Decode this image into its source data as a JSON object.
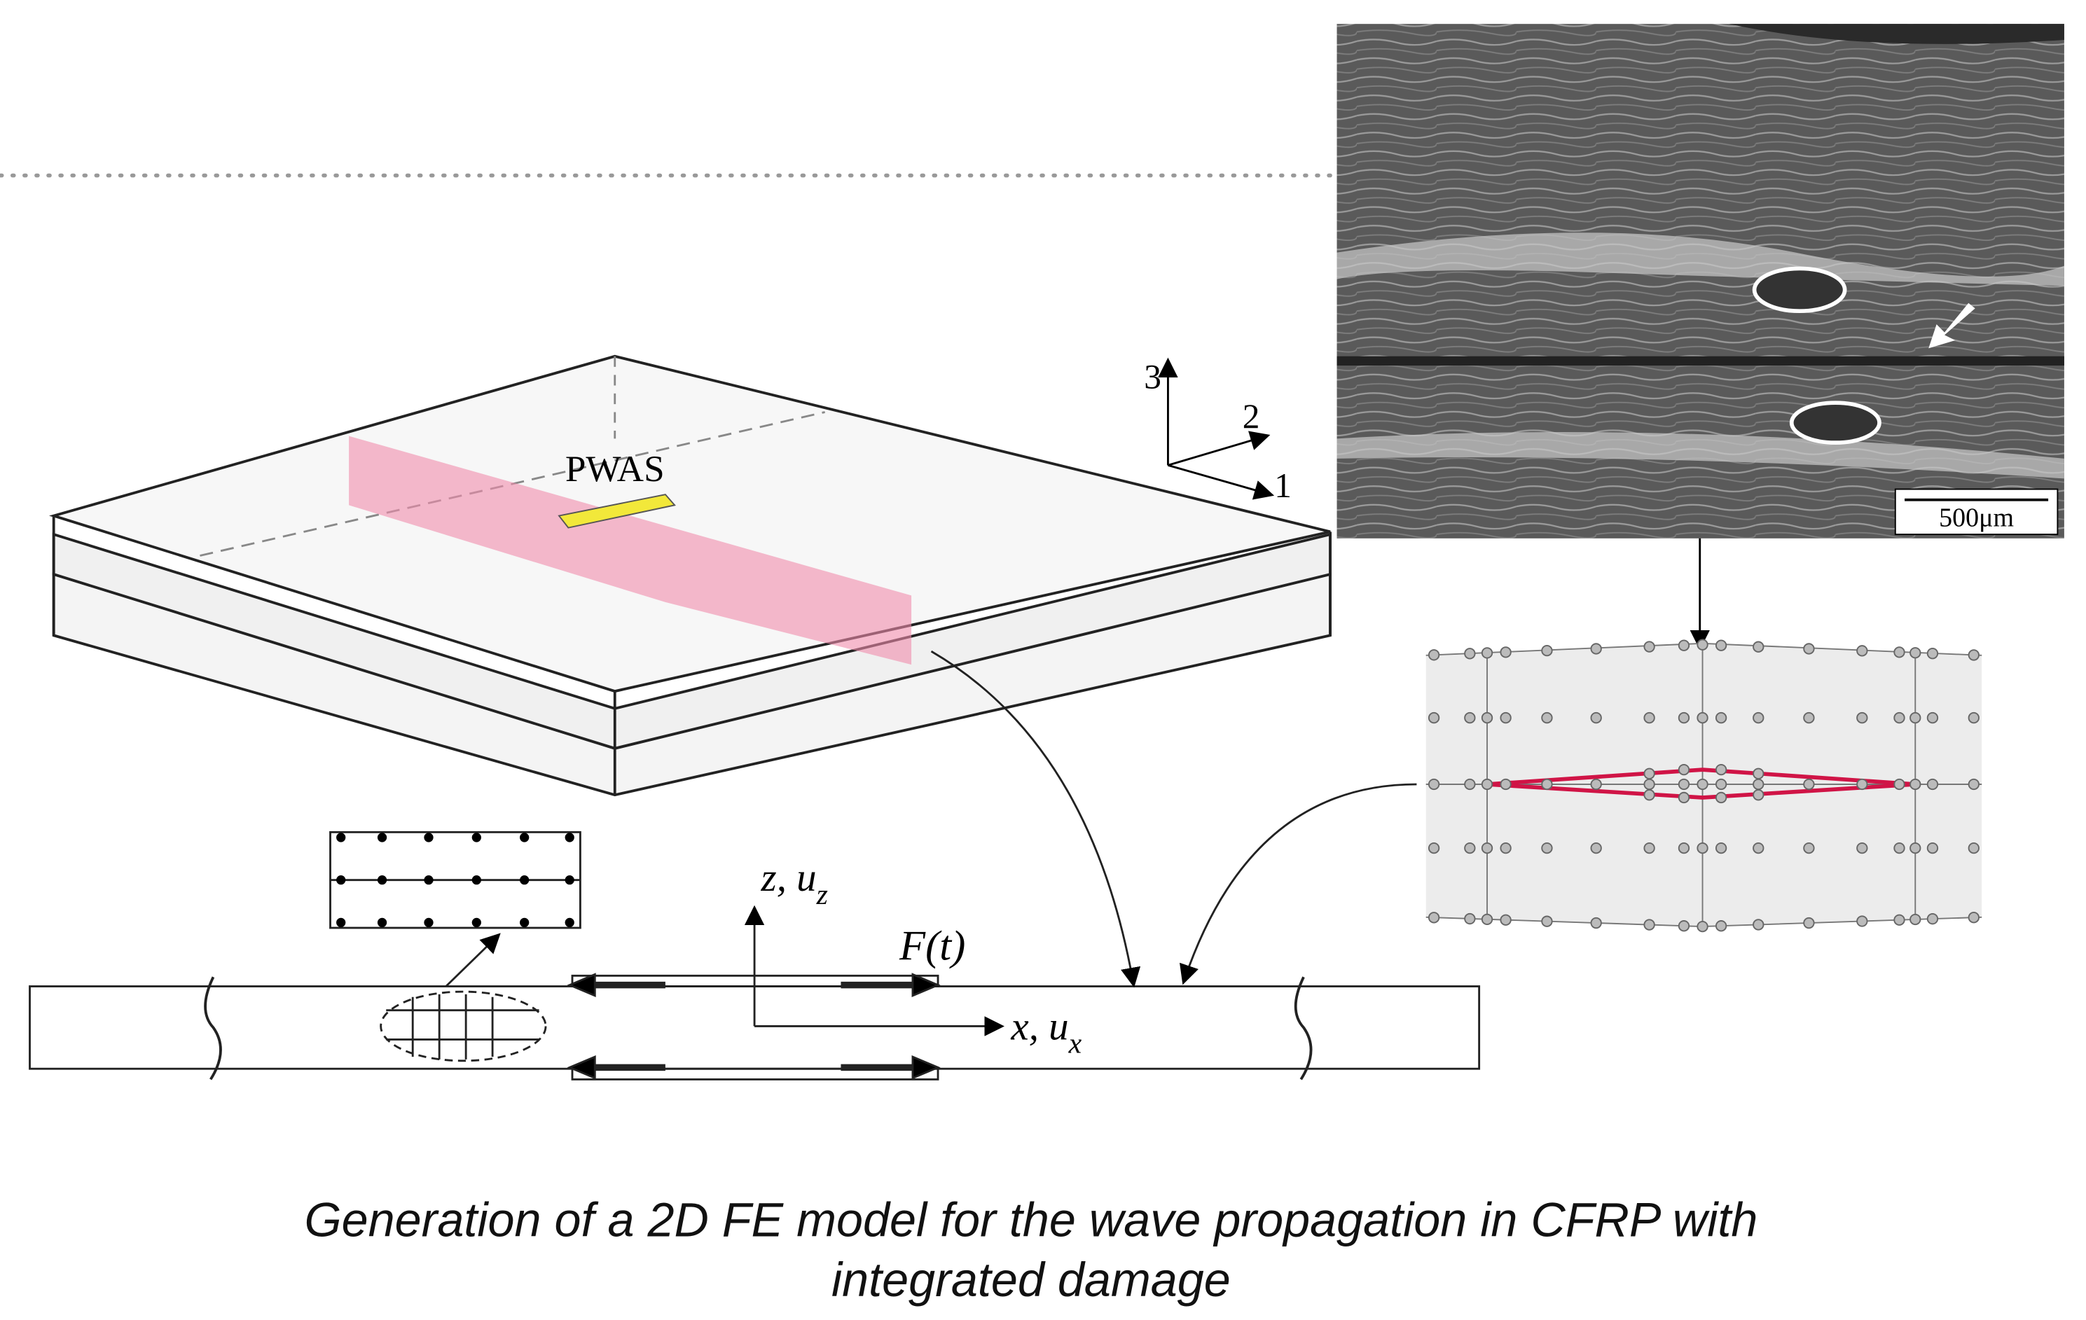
{
  "axes_3d": {
    "axis_3": "3",
    "axis_2": "2",
    "axis_1": "1"
  },
  "sensor_label": "PWAS",
  "micrograph": {
    "scale_bar": "500μm"
  },
  "beam_model": {
    "z_axis": {
      "label": "z, u",
      "sub": "z"
    },
    "force": "F(t)",
    "x_axis": {
      "label": "x, u",
      "sub": "x"
    }
  },
  "caption": [
    "Generation of a 2D FE model for the wave propagation in CFRP with",
    "integrated damage"
  ]
}
